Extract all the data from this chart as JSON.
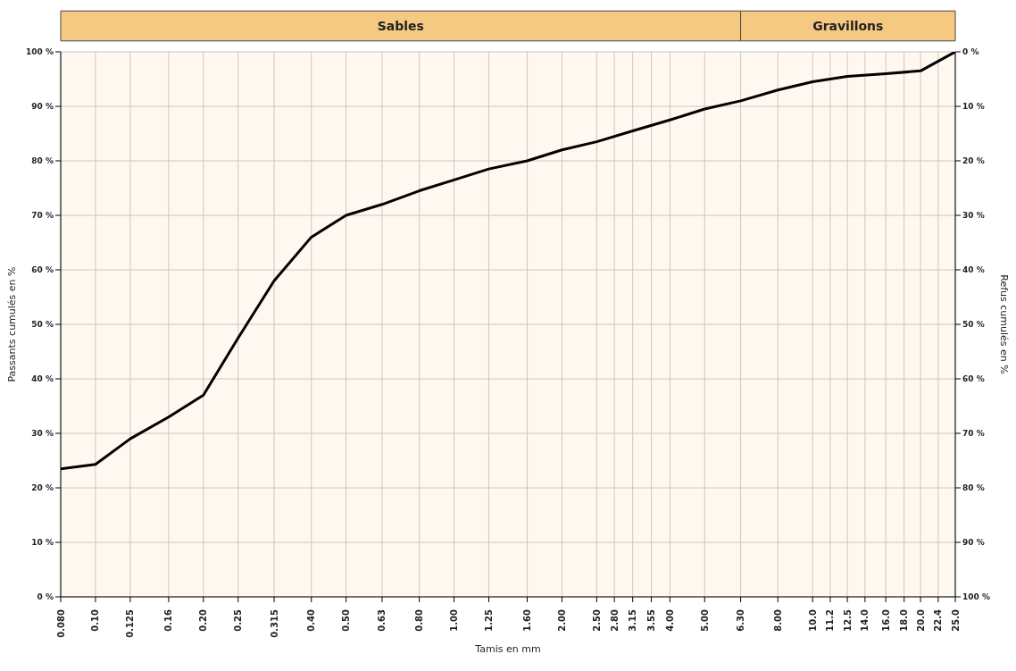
{
  "chart_data": {
    "type": "line",
    "xlabel": "Tamis en mm",
    "ylabel": "Passants cumulés en %",
    "y2label": "Refus cumulés en %",
    "log": "x",
    "grid": true,
    "marker": "none",
    "line_style": "solid",
    "x": [
      0.08,
      0.1,
      0.125,
      0.16,
      0.2,
      0.25,
      0.315,
      0.4,
      0.5,
      0.63,
      0.8,
      1.0,
      1.25,
      1.6,
      2.0,
      2.5,
      3.15,
      4.0,
      5.0,
      6.3,
      8.0,
      10.0,
      12.5,
      16.0,
      20.0,
      25.0
    ],
    "series": [
      {
        "color": "#000000",
        "values": [
          23.5,
          24.3,
          29,
          33,
          37,
          47.5,
          58,
          66,
          70,
          72,
          74.5,
          76.5,
          78.5,
          80,
          82,
          83.5,
          85.5,
          87.5,
          89.5,
          91,
          93,
          94.5,
          95.5,
          96,
          96.5,
          100
        ]
      }
    ],
    "xlim": [
      0.08,
      25
    ],
    "xticks": [
      {
        "value": 0.08,
        "label": "0.080"
      },
      {
        "value": 0.1,
        "label": "0.10"
      },
      {
        "value": 0.125,
        "label": "0.125"
      },
      {
        "value": 0.16,
        "label": "0.16"
      },
      {
        "value": 0.2,
        "label": "0.20"
      },
      {
        "value": 0.25,
        "label": "0.25"
      },
      {
        "value": 0.315,
        "label": "0.315"
      },
      {
        "value": 0.4,
        "label": "0.40"
      },
      {
        "value": 0.5,
        "label": "0.50"
      },
      {
        "value": 0.63,
        "label": "0.63"
      },
      {
        "value": 0.8,
        "label": "0.80"
      },
      {
        "value": 1,
        "label": "1.00"
      },
      {
        "value": 1.25,
        "label": "1.25"
      },
      {
        "value": 1.6,
        "label": "1.60"
      },
      {
        "value": 2,
        "label": "2.00"
      },
      {
        "value": 2.5,
        "label": "2.50"
      },
      {
        "value": 2.8,
        "label": "2.80"
      },
      {
        "value": 3.15,
        "label": "3.15"
      },
      {
        "value": 3.55,
        "label": "3.55"
      },
      {
        "value": 4,
        "label": "4.00"
      },
      {
        "value": 5,
        "label": "5.00"
      },
      {
        "value": 6.3,
        "label": "6.30"
      },
      {
        "value": 8,
        "label": "8.00"
      },
      {
        "value": 10,
        "label": "10.0"
      },
      {
        "value": 11.2,
        "label": "11.2"
      },
      {
        "value": 12.5,
        "label": "12.5"
      },
      {
        "value": 14,
        "label": "14.0"
      },
      {
        "value": 16,
        "label": "16.0"
      },
      {
        "value": 18,
        "label": "18.0"
      },
      {
        "value": 20,
        "label": "20.0"
      },
      {
        "value": 22.4,
        "label": "22.4"
      },
      {
        "value": 25,
        "label": "25.0"
      }
    ],
    "ylim": [
      0,
      100
    ],
    "yticks": [
      {
        "value": 0,
        "label": "0 %"
      },
      {
        "value": 10,
        "label": "10 %"
      },
      {
        "value": 20,
        "label": "20 %"
      },
      {
        "value": 30,
        "label": "30 %"
      },
      {
        "value": 40,
        "label": "40 %"
      },
      {
        "value": 50,
        "label": "50 %"
      },
      {
        "value": 60,
        "label": "60 %"
      },
      {
        "value": 70,
        "label": "70 %"
      },
      {
        "value": 80,
        "label": "80 %"
      },
      {
        "value": 90,
        "label": "90 %"
      },
      {
        "value": 100,
        "label": "100 %"
      }
    ],
    "y2lim": [
      100,
      0
    ],
    "y2ticks": [
      {
        "value": 0,
        "label": "0 %"
      },
      {
        "value": 10,
        "label": "10 %"
      },
      {
        "value": 20,
        "label": "20 %"
      },
      {
        "value": 30,
        "label": "30 %"
      },
      {
        "value": 40,
        "label": "40 %"
      },
      {
        "value": 50,
        "label": "50 %"
      },
      {
        "value": 60,
        "label": "60 %"
      },
      {
        "value": 70,
        "label": "70 %"
      },
      {
        "value": 80,
        "label": "80 %"
      },
      {
        "value": 90,
        "label": "90 %"
      },
      {
        "value": 100,
        "label": "100 %"
      }
    ],
    "bands": [
      {
        "axis": "x",
        "from": 0.08,
        "to": 6.3,
        "label": "Sables",
        "color": "#f5c982"
      },
      {
        "axis": "x",
        "from": 6.3,
        "to": 25,
        "label": "Gravillons",
        "color": "#f5c982"
      }
    ]
  }
}
